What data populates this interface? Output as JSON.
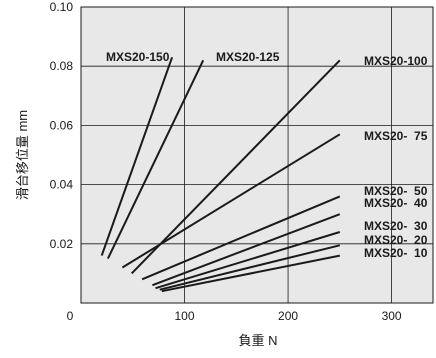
{
  "chart_data": {
    "type": "line",
    "title": "",
    "xlabel": "負重 N",
    "ylabel": "滑台移位量 mm",
    "xlim": [
      0,
      340
    ],
    "ylim": [
      0,
      0.1
    ],
    "x_ticks": [
      "0",
      "100",
      "200",
      "300"
    ],
    "y_ticks": [
      "0.02",
      "0.04",
      "0.06",
      "0.08",
      "0.10"
    ],
    "grid": true,
    "background": "#e8e8e8",
    "line_color": "#1a1a1a",
    "series": [
      {
        "name": "MXS20-150",
        "points": [
          [
            20,
            0.016
          ],
          [
            88,
            0.083
          ]
        ]
      },
      {
        "name": "MXS20-125",
        "points": [
          [
            26,
            0.015
          ],
          [
            118,
            0.082
          ]
        ]
      },
      {
        "name": "MXS20-100",
        "points": [
          [
            49,
            0.01
          ],
          [
            250,
            0.082
          ]
        ]
      },
      {
        "name": "MXS20-  75",
        "points": [
          [
            40,
            0.012
          ],
          [
            250,
            0.057
          ]
        ]
      },
      {
        "name": "MXS20-  50",
        "points": [
          [
            59,
            0.008
          ],
          [
            250,
            0.036
          ]
        ]
      },
      {
        "name": "MXS20-  40",
        "points": [
          [
            69,
            0.006
          ],
          [
            250,
            0.03
          ]
        ]
      },
      {
        "name": "MXS20-  30",
        "points": [
          [
            72,
            0.005
          ],
          [
            250,
            0.024
          ]
        ]
      },
      {
        "name": "MXS20-  20",
        "points": [
          [
            76,
            0.0045
          ],
          [
            250,
            0.0195
          ]
        ]
      },
      {
        "name": "MXS20-  10",
        "points": [
          [
            78,
            0.004
          ],
          [
            250,
            0.016
          ]
        ]
      }
    ]
  }
}
